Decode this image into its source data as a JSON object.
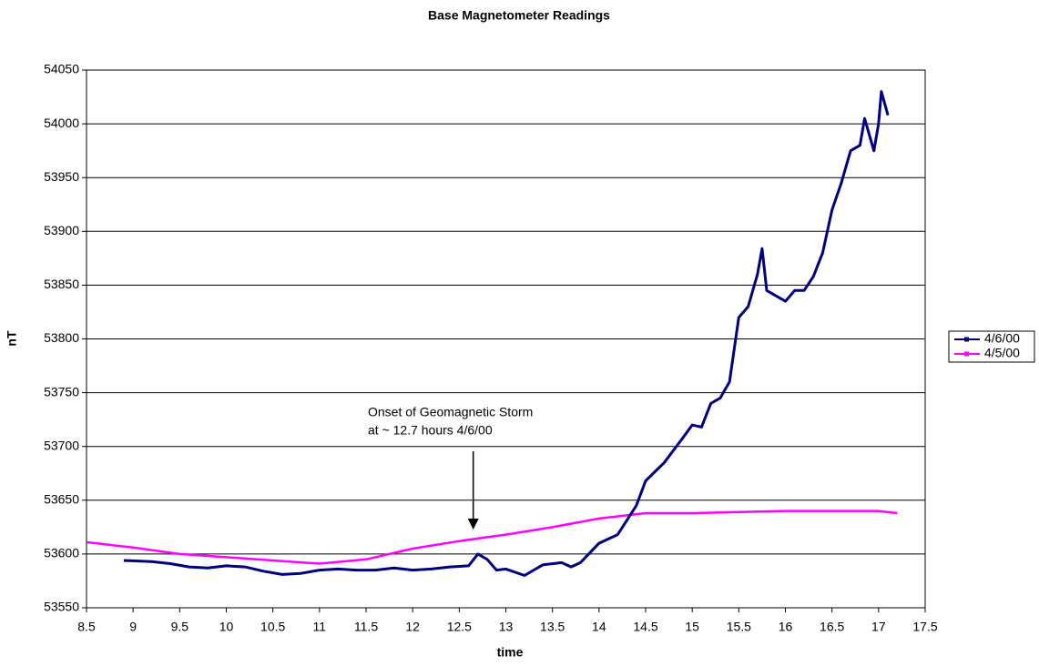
{
  "chart_data": {
    "type": "line",
    "title": "Base Magnetometer Readings",
    "x_label": "time",
    "y_label": "nT",
    "xlim": [
      8.5,
      17.5
    ],
    "xticks": [
      8.5,
      9,
      9.5,
      10,
      10.5,
      11,
      11.5,
      12,
      12.5,
      13,
      13.5,
      14,
      14.5,
      15,
      15.5,
      16,
      16.5,
      17,
      17.5
    ],
    "ylim": [
      53550,
      54050
    ],
    "yticks": [
      53550,
      53600,
      53650,
      53700,
      53750,
      53800,
      53850,
      53900,
      53950,
      54000,
      54050
    ],
    "grid": true,
    "legend": "right",
    "annotation": {
      "text": [
        "Onset of Geomagnetic Storm",
        "at ~ 12.7 hours 4/6/00"
      ],
      "x": 12.65
    },
    "series": [
      {
        "name": "4/6/00",
        "color": "#000080",
        "x": [
          8.9,
          9.2,
          9.4,
          9.6,
          9.8,
          10.0,
          10.2,
          10.4,
          10.6,
          10.8,
          11.0,
          11.2,
          11.4,
          11.6,
          11.8,
          12.0,
          12.2,
          12.4,
          12.6,
          12.7,
          12.8,
          12.9,
          13.0,
          13.2,
          13.4,
          13.6,
          13.7,
          13.8,
          14.0,
          14.2,
          14.4,
          14.5,
          14.7,
          14.9,
          15.0,
          15.1,
          15.2,
          15.3,
          15.4,
          15.5,
          15.6,
          15.7,
          15.75,
          15.8,
          16.0,
          16.1,
          16.2,
          16.3,
          16.4,
          16.5,
          16.6,
          16.7,
          16.8,
          16.85,
          16.95,
          17.0,
          17.03,
          17.1
        ],
        "values": [
          53594,
          53593,
          53591,
          53588,
          53587,
          53589,
          53588,
          53584,
          53581,
          53582,
          53585,
          53586,
          53585,
          53585,
          53587,
          53585,
          53586,
          53588,
          53589,
          53600,
          53595,
          53585,
          53586,
          53580,
          53590,
          53592,
          53588,
          53592,
          53610,
          53618,
          53645,
          53668,
          53685,
          53708,
          53720,
          53718,
          53740,
          53745,
          53760,
          53820,
          53830,
          53860,
          53884,
          53845,
          53835,
          53845,
          53845,
          53858,
          53880,
          53920,
          53945,
          53975,
          53980,
          54005,
          53975,
          54000,
          54030,
          54008
        ]
      },
      {
        "name": "4/5/00",
        "color": "#ff00ff",
        "x": [
          8.5,
          9.0,
          9.5,
          10.0,
          10.5,
          11.0,
          11.5,
          12.0,
          12.5,
          13.0,
          13.5,
          14.0,
          14.5,
          15.0,
          15.5,
          16.0,
          16.5,
          17.0,
          17.2
        ],
        "values": [
          53611,
          53606,
          53600,
          53597,
          53594,
          53591,
          53595,
          53605,
          53612,
          53618,
          53625,
          53633,
          53638,
          53638,
          53639,
          53640,
          53640,
          53640,
          53638
        ]
      }
    ]
  }
}
